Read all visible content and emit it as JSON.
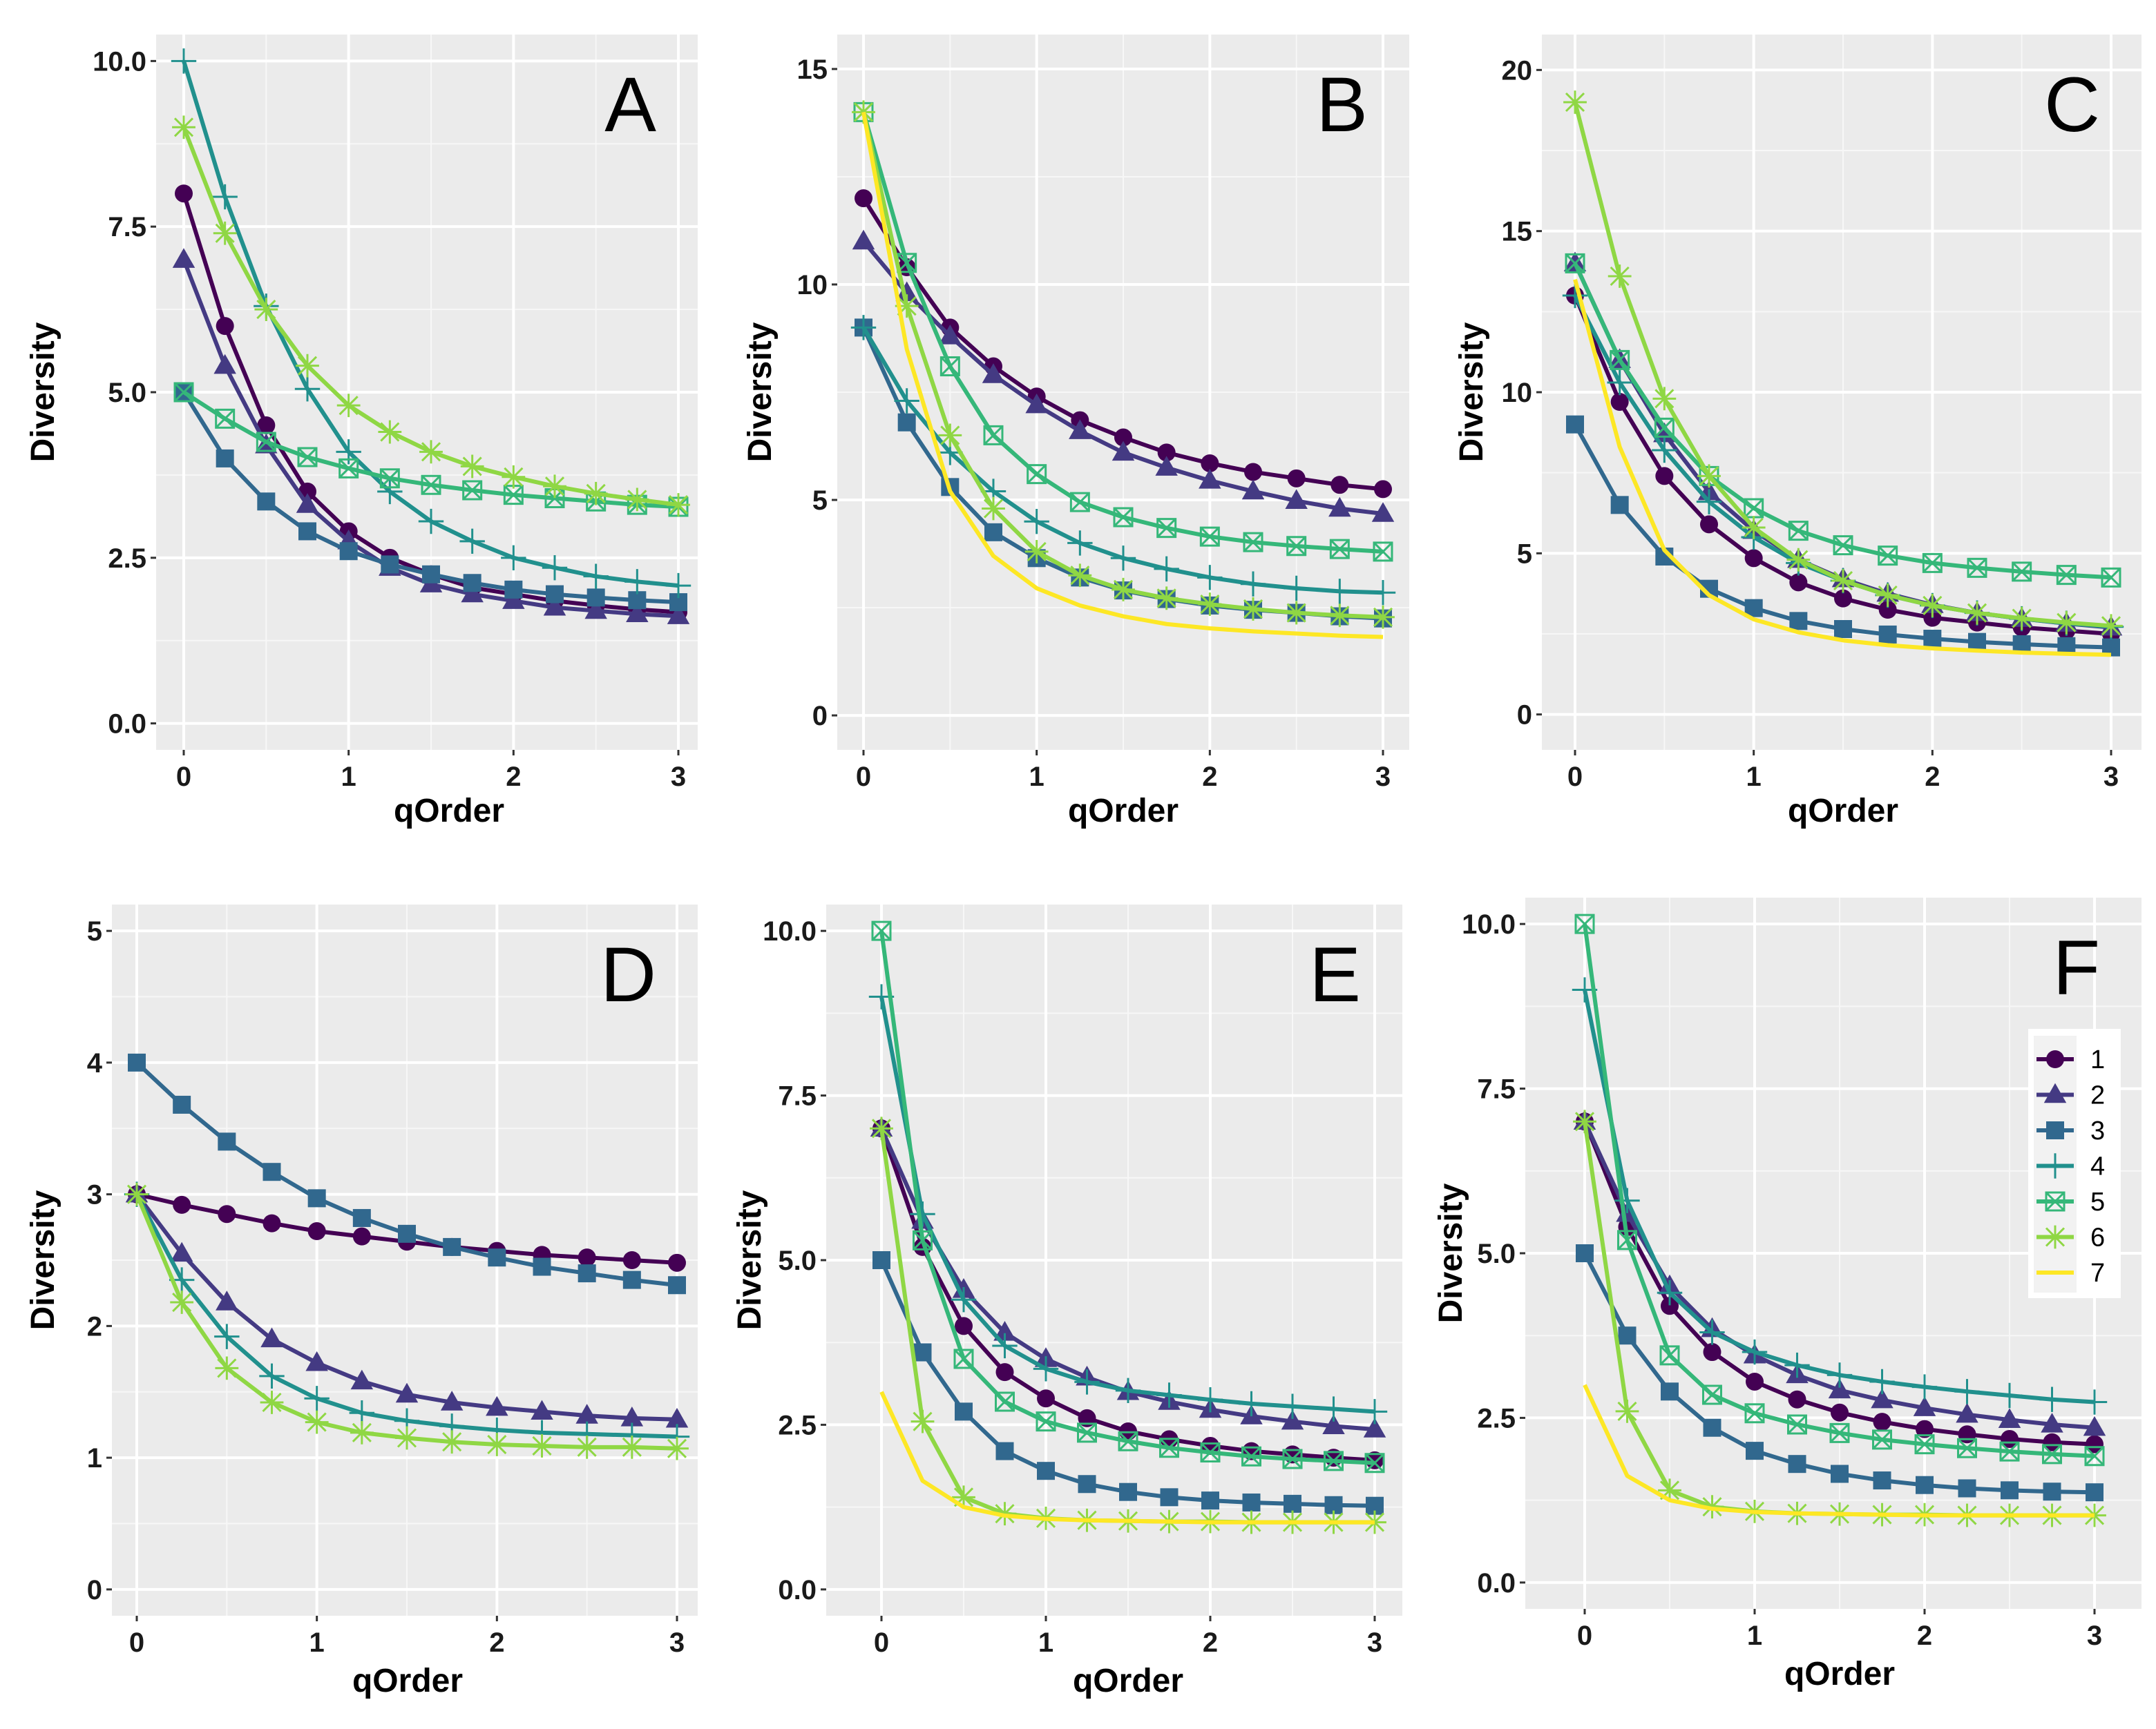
{
  "chart_data": {
    "type": "line",
    "x": [
      0,
      0.25,
      0.5,
      0.75,
      1,
      1.25,
      1.5,
      1.75,
      2,
      2.25,
      2.5,
      2.75,
      3
    ],
    "xlabel": "qOrder",
    "ylabel": "Diversity",
    "xticks": [
      "0",
      "1",
      "2",
      "3"
    ],
    "legend": {
      "placement": "inside panel F, right",
      "entries": [
        {
          "id": "1",
          "label": "1",
          "color": "#440154",
          "marker": "circle"
        },
        {
          "id": "2",
          "label": "2",
          "color": "#443a83",
          "marker": "triangle"
        },
        {
          "id": "3",
          "label": "3",
          "color": "#31688e",
          "marker": "square"
        },
        {
          "id": "4",
          "label": "4",
          "color": "#21908d",
          "marker": "plus"
        },
        {
          "id": "5",
          "label": "5",
          "color": "#35b779",
          "marker": "square-cross"
        },
        {
          "id": "6",
          "label": "6",
          "color": "#8fd744",
          "marker": "asterisk"
        },
        {
          "id": "7",
          "label": "7",
          "color": "#fde725",
          "marker": "none"
        }
      ]
    },
    "panels": [
      {
        "label": "A",
        "ylim": [
          -0.4,
          10.4
        ],
        "yticks": [
          0,
          2.5,
          5,
          7.5,
          10
        ],
        "ytick_labels": [
          "0.0",
          "2.5",
          "5.0",
          "7.5",
          "10.0"
        ],
        "series": [
          {
            "id": "1",
            "values": [
              8,
              6.0,
              4.5,
              3.5,
              2.9,
              2.5,
              2.25,
              2.05,
              1.95,
              1.85,
              1.78,
              1.72,
              1.68
            ]
          },
          {
            "id": "2",
            "values": [
              7,
              5.4,
              4.2,
              3.3,
              2.75,
              2.35,
              2.1,
              1.95,
              1.85,
              1.75,
              1.7,
              1.65,
              1.62
            ]
          },
          {
            "id": "3",
            "values": [
              5,
              4.0,
              3.35,
              2.9,
              2.6,
              2.4,
              2.25,
              2.12,
              2.02,
              1.95,
              1.9,
              1.86,
              1.83
            ]
          },
          {
            "id": "4",
            "values": [
              10,
              7.95,
              6.3,
              5.05,
              4.1,
              3.5,
              3.05,
              2.75,
              2.5,
              2.35,
              2.22,
              2.14,
              2.08
            ]
          },
          {
            "id": "5",
            "values": [
              5,
              4.6,
              4.25,
              4.02,
              3.85,
              3.7,
              3.6,
              3.52,
              3.45,
              3.4,
              3.35,
              3.3,
              3.27
            ]
          },
          {
            "id": "6",
            "values": [
              9,
              7.4,
              6.25,
              5.4,
              4.8,
              4.4,
              4.1,
              3.88,
              3.72,
              3.58,
              3.47,
              3.38,
              3.3
            ]
          }
        ]
      },
      {
        "label": "B",
        "ylim": [
          -0.8,
          15.8
        ],
        "yticks": [
          0,
          5,
          10,
          15
        ],
        "ytick_labels": [
          "0",
          "5",
          "10",
          "15"
        ],
        "series": [
          {
            "id": "1",
            "values": [
              12,
              10.4,
              9.0,
              8.1,
              7.4,
              6.85,
              6.45,
              6.1,
              5.85,
              5.65,
              5.5,
              5.35,
              5.25
            ]
          },
          {
            "id": "2",
            "values": [
              11,
              9.8,
              8.8,
              7.9,
              7.2,
              6.6,
              6.1,
              5.75,
              5.45,
              5.2,
              4.98,
              4.8,
              4.68
            ]
          },
          {
            "id": "3",
            "values": [
              9,
              6.8,
              5.3,
              4.25,
              3.65,
              3.2,
              2.9,
              2.7,
              2.55,
              2.45,
              2.38,
              2.3,
              2.25
            ]
          },
          {
            "id": "4",
            "values": [
              9,
              7.3,
              6.1,
              5.2,
              4.5,
              4.0,
              3.65,
              3.4,
              3.2,
              3.05,
              2.95,
              2.88,
              2.85
            ]
          },
          {
            "id": "5",
            "values": [
              14,
              10.5,
              8.1,
              6.5,
              5.6,
              4.95,
              4.6,
              4.35,
              4.15,
              4.02,
              3.93,
              3.86,
              3.8
            ]
          },
          {
            "id": "6",
            "values": [
              14,
              9.5,
              6.5,
              4.8,
              3.8,
              3.25,
              2.92,
              2.72,
              2.58,
              2.47,
              2.38,
              2.32,
              2.28
            ]
          },
          {
            "id": "7",
            "values": [
              14,
              8.5,
              5.2,
              3.7,
              2.95,
              2.55,
              2.3,
              2.12,
              2.02,
              1.95,
              1.9,
              1.85,
              1.82
            ]
          }
        ]
      },
      {
        "label": "C",
        "ylim": [
          -1.1,
          21.1
        ],
        "yticks": [
          0,
          5,
          10,
          15,
          20
        ],
        "ytick_labels": [
          "0",
          "5",
          "10",
          "15",
          "20"
        ],
        "series": [
          {
            "id": "1",
            "values": [
              13,
              9.7,
              7.4,
              5.9,
              4.85,
              4.1,
              3.6,
              3.25,
              3.0,
              2.85,
              2.7,
              2.6,
              2.5
            ]
          },
          {
            "id": "2",
            "values": [
              14,
              11,
              8.7,
              6.9,
              5.7,
              4.8,
              4.2,
              3.75,
              3.4,
              3.15,
              2.97,
              2.82,
              2.7
            ]
          },
          {
            "id": "3",
            "values": [
              9,
              6.5,
              4.9,
              3.9,
              3.3,
              2.9,
              2.65,
              2.48,
              2.35,
              2.25,
              2.18,
              2.12,
              2.08
            ]
          },
          {
            "id": "4",
            "values": [
              13,
              10.3,
              8.2,
              6.6,
              5.5,
              4.7,
              4.15,
              3.7,
              3.38,
              3.15,
              2.97,
              2.83,
              2.72
            ]
          },
          {
            "id": "5",
            "values": [
              14,
              11,
              8.9,
              7.4,
              6.4,
              5.7,
              5.25,
              4.93,
              4.7,
              4.55,
              4.43,
              4.33,
              4.25
            ]
          },
          {
            "id": "6",
            "values": [
              19,
              13.6,
              9.8,
              7.4,
              5.8,
              4.8,
              4.15,
              3.7,
              3.38,
              3.15,
              2.98,
              2.85,
              2.75
            ]
          },
          {
            "id": "7",
            "values": [
              13.5,
              8.3,
              5.1,
              3.7,
              2.95,
              2.55,
              2.3,
              2.15,
              2.05,
              1.98,
              1.92,
              1.88,
              1.85
            ]
          }
        ]
      },
      {
        "label": "D",
        "ylim": [
          -0.2,
          5.2
        ],
        "yticks": [
          0,
          1,
          2,
          3,
          4,
          5
        ],
        "ytick_labels": [
          "0",
          "1",
          "2",
          "3",
          "4",
          "5"
        ],
        "series": [
          {
            "id": "1",
            "values": [
              3,
              2.92,
              2.85,
              2.78,
              2.72,
              2.68,
              2.64,
              2.6,
              2.57,
              2.54,
              2.52,
              2.5,
              2.48
            ]
          },
          {
            "id": "2",
            "values": [
              3,
              2.55,
              2.18,
              1.9,
              1.72,
              1.58,
              1.48,
              1.42,
              1.38,
              1.35,
              1.32,
              1.3,
              1.29
            ]
          },
          {
            "id": "3",
            "values": [
              4,
              3.68,
              3.4,
              3.17,
              2.97,
              2.82,
              2.7,
              2.6,
              2.52,
              2.45,
              2.4,
              2.35,
              2.31
            ]
          },
          {
            "id": "4",
            "values": [
              3,
              2.35,
              1.92,
              1.62,
              1.45,
              1.34,
              1.28,
              1.24,
              1.21,
              1.19,
              1.18,
              1.17,
              1.16
            ]
          },
          {
            "id": "6",
            "values": [
              3,
              2.18,
              1.68,
              1.42,
              1.27,
              1.19,
              1.15,
              1.12,
              1.1,
              1.09,
              1.08,
              1.08,
              1.07
            ]
          }
        ]
      },
      {
        "label": "E",
        "ylim": [
          -0.4,
          10.4
        ],
        "yticks": [
          0,
          2.5,
          5,
          7.5,
          10
        ],
        "ytick_labels": [
          "0.0",
          "2.5",
          "5.0",
          "7.5",
          "10.0"
        ],
        "series": [
          {
            "id": "1",
            "values": [
              7,
              5.2,
              4.0,
              3.3,
              2.9,
              2.6,
              2.4,
              2.28,
              2.18,
              2.1,
              2.05,
              2.0,
              1.96
            ]
          },
          {
            "id": "2",
            "values": [
              7,
              5.6,
              4.55,
              3.9,
              3.5,
              3.22,
              3.0,
              2.85,
              2.73,
              2.63,
              2.55,
              2.48,
              2.43
            ]
          },
          {
            "id": "3",
            "values": [
              5,
              3.6,
              2.7,
              2.1,
              1.8,
              1.6,
              1.48,
              1.4,
              1.35,
              1.32,
              1.3,
              1.28,
              1.27
            ]
          },
          {
            "id": "4",
            "values": [
              9,
              5.7,
              4.4,
              3.7,
              3.35,
              3.15,
              3.02,
              2.95,
              2.88,
              2.82,
              2.78,
              2.74,
              2.7
            ]
          },
          {
            "id": "5",
            "values": [
              10,
              5.3,
              3.5,
              2.85,
              2.55,
              2.38,
              2.25,
              2.15,
              2.08,
              2.02,
              1.98,
              1.95,
              1.92
            ]
          },
          {
            "id": "6",
            "values": [
              7,
              2.55,
              1.4,
              1.15,
              1.08,
              1.05,
              1.04,
              1.03,
              1.03,
              1.02,
              1.02,
              1.02,
              1.02
            ]
          },
          {
            "id": "7",
            "values": [
              3,
              1.65,
              1.25,
              1.12,
              1.07,
              1.05,
              1.04,
              1.03,
              1.02,
              1.02,
              1.02,
              1.02,
              1.02
            ]
          }
        ]
      },
      {
        "label": "F",
        "ylim": [
          -0.4,
          10.4
        ],
        "yticks": [
          0,
          2.5,
          5,
          7.5,
          10
        ],
        "ytick_labels": [
          "0.0",
          "2.5",
          "5.0",
          "7.5",
          "10.0"
        ],
        "series": [
          {
            "id": "1",
            "values": [
              7,
              5.4,
              4.2,
              3.5,
              3.05,
              2.78,
              2.58,
              2.44,
              2.33,
              2.25,
              2.18,
              2.13,
              2.1
            ]
          },
          {
            "id": "2",
            "values": [
              7,
              5.6,
              4.5,
              3.85,
              3.45,
              3.15,
              2.92,
              2.77,
              2.65,
              2.55,
              2.47,
              2.4,
              2.35
            ]
          },
          {
            "id": "3",
            "values": [
              5,
              3.75,
              2.9,
              2.35,
              2.0,
              1.8,
              1.65,
              1.55,
              1.48,
              1.43,
              1.4,
              1.38,
              1.37
            ]
          },
          {
            "id": "4",
            "values": [
              9,
              5.8,
              4.4,
              3.8,
              3.5,
              3.3,
              3.15,
              3.05,
              2.97,
              2.9,
              2.84,
              2.78,
              2.74
            ]
          },
          {
            "id": "5",
            "values": [
              10,
              5.2,
              3.45,
              2.85,
              2.57,
              2.4,
              2.27,
              2.17,
              2.1,
              2.04,
              1.99,
              1.95,
              1.92
            ]
          },
          {
            "id": "6",
            "values": [
              7,
              2.6,
              1.4,
              1.15,
              1.08,
              1.05,
              1.04,
              1.03,
              1.03,
              1.02,
              1.02,
              1.02,
              1.02
            ]
          },
          {
            "id": "7",
            "values": [
              3,
              1.62,
              1.25,
              1.12,
              1.07,
              1.05,
              1.04,
              1.03,
              1.02,
              1.02,
              1.02,
              1.02,
              1.02
            ]
          }
        ]
      }
    ]
  }
}
